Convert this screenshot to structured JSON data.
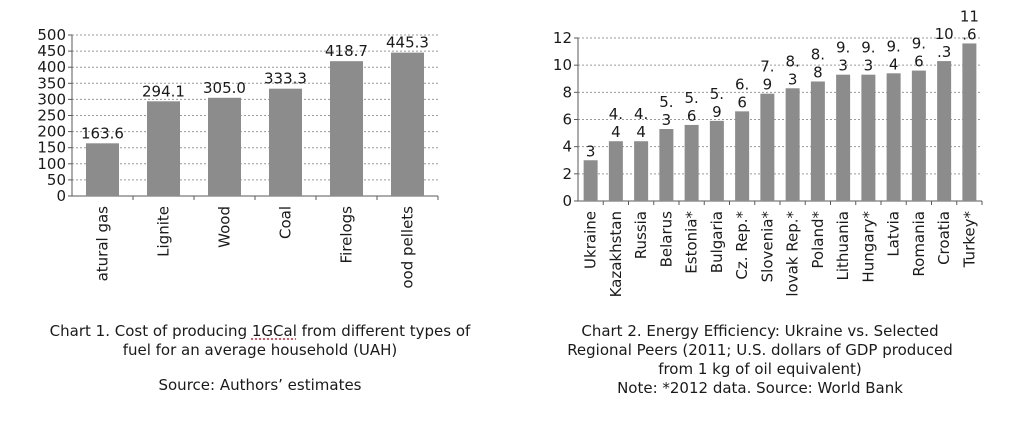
{
  "colors": {
    "bar": "#8c8c8c",
    "grid": "#9a9a9a",
    "axis": "#5a5a5a",
    "text": "#1a1a1a"
  },
  "chart1": {
    "caption_pre": "Chart 1. Cost of producing ",
    "caption_gcal": "1GCal",
    "caption_post": " from different types of",
    "caption_line2": "fuel for an average household (UAH)",
    "source": "Source: Authors’ estimates"
  },
  "chart2": {
    "caption_line1": "Chart 2. Energy Efficiency: Ukraine vs. Selected",
    "caption_line2": "Regional Peers (2011; U.S. dollars of GDP produced",
    "caption_line3": "from 1 kg of oil equivalent)",
    "note": "Note: *2012 data. Source: World Bank"
  },
  "chart_data": [
    {
      "type": "bar",
      "title": "",
      "xlabel": "",
      "ylabel": "",
      "ylim": [
        0,
        500
      ],
      "yticks": [
        0,
        50,
        100,
        150,
        200,
        250,
        300,
        350,
        400,
        450,
        500
      ],
      "grid": true,
      "categories": [
        "Natural gas",
        "Lignite",
        "Wood",
        "Coal",
        "Firelogs",
        "Wood pellets"
      ],
      "category_labels_shown": [
        "atural gas",
        "Lignite",
        "Wood",
        "Coal",
        "Firelogs",
        "ood pellets"
      ],
      "values": [
        163.6,
        294.1,
        305.0,
        333.3,
        418.7,
        445.3
      ],
      "value_labels": [
        "163.6",
        "294.1",
        "305.0",
        "333.3",
        "418.7",
        "445.3"
      ]
    },
    {
      "type": "bar",
      "title": "",
      "xlabel": "",
      "ylabel": "",
      "ylim": [
        0,
        12
      ],
      "yticks": [
        0,
        2,
        4,
        6,
        8,
        10,
        12
      ],
      "grid": true,
      "categories": [
        "Ukraine",
        "Kazakhstan",
        "Russia",
        "Belarus",
        "Estonia*",
        "Bulgaria",
        "Cz. Rep.*",
        "Slovenia*",
        "Slovak Rep.*",
        "Poland*",
        "Lithuania",
        "Hungary*",
        "Latvia",
        "Romania",
        "Croatia",
        "Turkey*"
      ],
      "category_labels_shown": [
        "Ukraine",
        "Kazakhstan",
        "Russia",
        "Belarus",
        "Estonia*",
        "Bulgaria",
        "Cz. Rep.*",
        "Slovenia*",
        "lovak Rep.*",
        "Poland*",
        "Lithuania",
        "Hungary*",
        "Latvia",
        "Romania",
        "Croatia",
        "Turkey*"
      ],
      "values": [
        3.0,
        4.4,
        4.4,
        5.3,
        5.6,
        5.9,
        6.6,
        7.9,
        8.3,
        8.8,
        9.3,
        9.3,
        9.4,
        9.6,
        10.3,
        11.6
      ],
      "value_label_lines": [
        [
          "3"
        ],
        [
          "4.",
          "4"
        ],
        [
          "4.",
          "4"
        ],
        [
          "5.",
          "3"
        ],
        [
          "5.",
          "6"
        ],
        [
          "5.",
          "9"
        ],
        [
          "6.",
          "6"
        ],
        [
          "7.",
          "9"
        ],
        [
          "8.",
          "3"
        ],
        [
          "8.",
          "8"
        ],
        [
          "9.",
          "3"
        ],
        [
          "9.",
          "3"
        ],
        [
          "9.",
          "4"
        ],
        [
          "9.",
          "6"
        ],
        [
          "10",
          ".3"
        ],
        [
          "11",
          ".6"
        ]
      ]
    }
  ]
}
